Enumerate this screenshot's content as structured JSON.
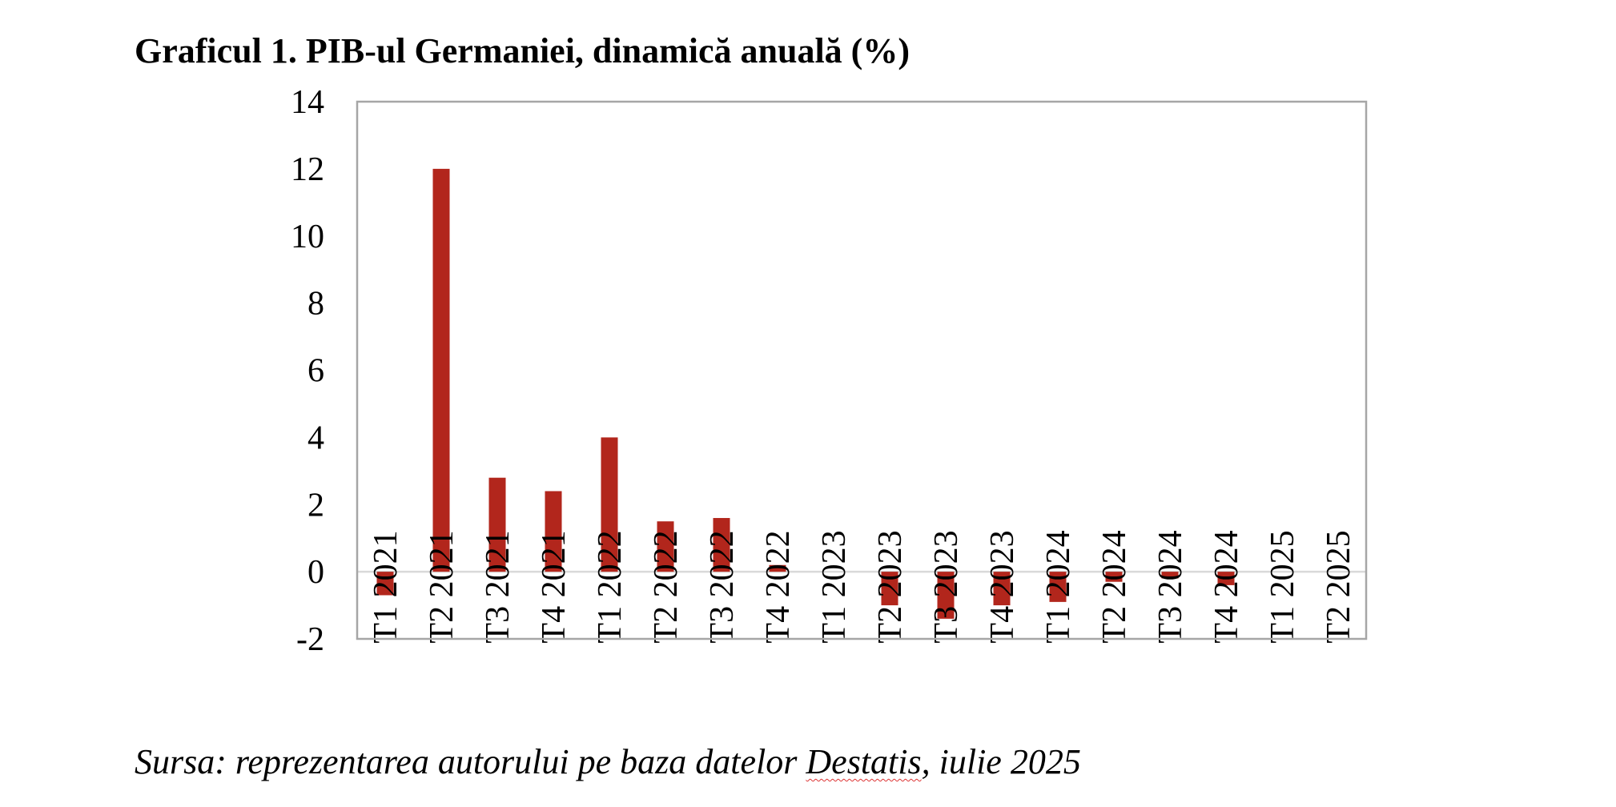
{
  "chart_data": {
    "type": "bar",
    "title": "Graficul 1. PIB-ul Germaniei, dinamică anuală (%)",
    "source_prefix": "Sursa: reprezentarea autorului pe baza datelor ",
    "source_name": "Destatis",
    "source_suffix": ", iulie 2025",
    "categories": [
      "T1 2021",
      "T2 2021",
      "T3 2021",
      "T4 2021",
      "T1 2022",
      "T2 2022",
      "T3 2022",
      "T4 2022",
      "T1 2023",
      "T2 2023",
      "T3 2023",
      "T4 2023",
      "T1 2024",
      "T2 2024",
      "T3 2024",
      "T4 2024",
      "T1 2025",
      "T2 2025"
    ],
    "series": [
      {
        "values": [
          -0.7,
          12.0,
          2.8,
          2.4,
          4.0,
          1.5,
          1.6,
          0.2,
          0.0,
          -1.0,
          -1.4,
          -1.0,
          -0.9,
          -0.3,
          -0.2,
          -0.4,
          0.0,
          0.0
        ]
      }
    ],
    "ylim": [
      -2,
      14
    ],
    "yticks": [
      -2,
      0,
      2,
      4,
      6,
      8,
      10,
      12,
      14
    ],
    "xlabel": "",
    "ylabel": "",
    "grid": false,
    "legend": "none",
    "colors": {
      "bar": "#b2261c",
      "frame": "#a6a6a6",
      "zero_line": "#d9d9d9"
    }
  }
}
